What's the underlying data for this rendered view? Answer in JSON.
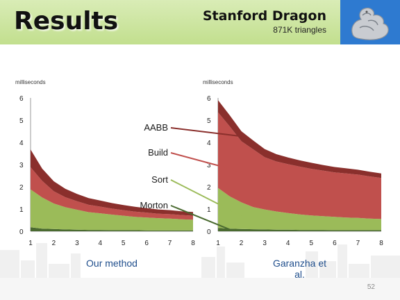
{
  "slide": {
    "title": "Results",
    "subject_title": "Stanford Dragon",
    "subject_subtitle": "871K triangles",
    "slide_number": "52",
    "dragon_icon": "dragon-statue-icon"
  },
  "legend_labels": [
    "AABB",
    "Build",
    "Sort",
    "Morton"
  ],
  "colors": {
    "Morton": "#4a6a30",
    "Sort": "#9bbb59",
    "Build": "#c0504d",
    "AABB": "#8a2f2c",
    "header": "#c9e39c",
    "method_label": "#1f4e8c"
  },
  "chart_data": [
    {
      "type": "area",
      "stacked": true,
      "title": "Our method",
      "ylabel": "milliseconds",
      "xlabel": "",
      "ylim": [
        0,
        6
      ],
      "xlim": [
        1,
        8
      ],
      "yticks": [
        0,
        1,
        2,
        3,
        4,
        5,
        6
      ],
      "xticks": [
        1,
        2,
        3,
        4,
        5,
        6,
        7,
        8
      ],
      "x": [
        1,
        1.5,
        2,
        2.5,
        3,
        3.5,
        4,
        4.5,
        5,
        5.5,
        6,
        6.5,
        7,
        7.5,
        8
      ],
      "series": [
        {
          "name": "Morton",
          "values": [
            0.18,
            0.12,
            0.1,
            0.08,
            0.07,
            0.06,
            0.06,
            0.05,
            0.05,
            0.05,
            0.04,
            0.04,
            0.04,
            0.04,
            0.04
          ]
        },
        {
          "name": "Sort",
          "values": [
            1.7,
            1.4,
            1.15,
            1.0,
            0.9,
            0.8,
            0.75,
            0.7,
            0.65,
            0.6,
            0.58,
            0.55,
            0.53,
            0.5,
            0.48
          ]
        },
        {
          "name": "Build",
          "values": [
            1.0,
            0.75,
            0.55,
            0.45,
            0.38,
            0.33,
            0.3,
            0.27,
            0.25,
            0.23,
            0.22,
            0.2,
            0.2,
            0.19,
            0.18
          ]
        },
        {
          "name": "AABB",
          "values": [
            0.8,
            0.55,
            0.45,
            0.38,
            0.33,
            0.3,
            0.27,
            0.25,
            0.23,
            0.22,
            0.2,
            0.19,
            0.18,
            0.17,
            0.17
          ]
        }
      ]
    },
    {
      "type": "area",
      "stacked": true,
      "title": "Garanzha et al.",
      "ylabel": "milliseconds",
      "xlabel": "",
      "ylim": [
        0,
        6
      ],
      "xlim": [
        1,
        8
      ],
      "yticks": [
        0,
        1,
        2,
        3,
        4,
        5,
        6
      ],
      "xticks": [
        1,
        2,
        3,
        4,
        5,
        6,
        7,
        8
      ],
      "x": [
        1,
        1.5,
        2,
        2.5,
        3,
        3.5,
        4,
        4.5,
        5,
        5.5,
        6,
        6.5,
        7,
        7.5,
        8
      ],
      "series": [
        {
          "name": "Morton",
          "values": [
            0.15,
            0.12,
            0.1,
            0.09,
            0.08,
            0.07,
            0.07,
            0.06,
            0.06,
            0.06,
            0.05,
            0.05,
            0.05,
            0.05,
            0.05
          ]
        },
        {
          "name": "Sort",
          "values": [
            1.8,
            1.45,
            1.2,
            1.0,
            0.9,
            0.82,
            0.75,
            0.7,
            0.65,
            0.62,
            0.6,
            0.57,
            0.55,
            0.52,
            0.5
          ]
        },
        {
          "name": "Build",
          "values": [
            3.4,
            3.15,
            2.75,
            2.6,
            2.35,
            2.25,
            2.2,
            2.15,
            2.1,
            2.05,
            2.0,
            1.98,
            1.95,
            1.9,
            1.85
          ]
        },
        {
          "name": "AABB",
          "values": [
            0.55,
            0.5,
            0.45,
            0.4,
            0.37,
            0.33,
            0.3,
            0.28,
            0.27,
            0.25,
            0.24,
            0.23,
            0.22,
            0.21,
            0.2
          ]
        }
      ]
    }
  ]
}
